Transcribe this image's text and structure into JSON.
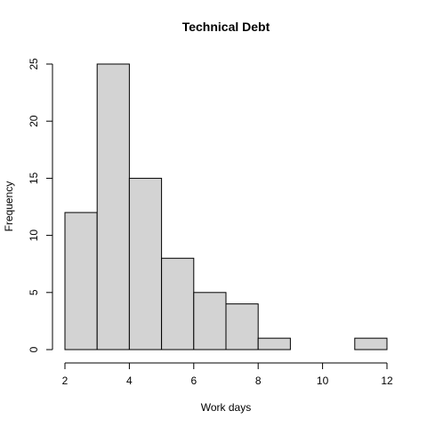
{
  "chart_data": {
    "type": "bar",
    "title": "Technical Debt",
    "xlabel": "Work days",
    "ylabel": "Frequency",
    "bin_edges": [
      2,
      3,
      4,
      5,
      6,
      7,
      8,
      9,
      10,
      11,
      12
    ],
    "counts": [
      12,
      25,
      15,
      8,
      5,
      4,
      1,
      0,
      0,
      1
    ],
    "xlim": [
      2,
      12
    ],
    "ylim": [
      0,
      25
    ],
    "x_ticks": [
      2,
      4,
      6,
      8,
      10,
      12
    ],
    "y_ticks": [
      0,
      5,
      10,
      15,
      20,
      25
    ],
    "bar_color": "#d3d3d3",
    "grid": false
  }
}
